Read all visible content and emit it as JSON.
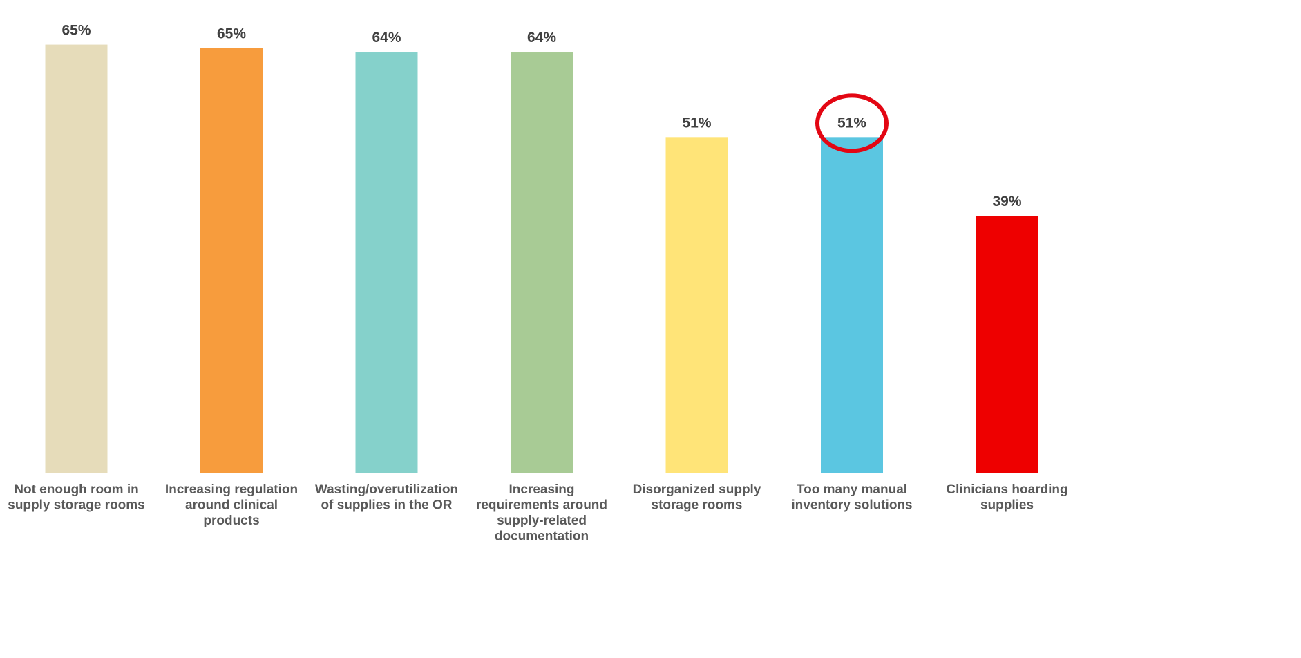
{
  "chart_data": {
    "type": "bar",
    "categories": [
      "Not enough room in supply storage rooms",
      "Increasing regulation around clinical products",
      "Wasting/overutilization of supplies in the OR",
      "Increasing requirements around supply-related documentation",
      "Disorganized supply storage rooms",
      "Too many manual inventory solutions",
      "Clinicians hoarding supplies"
    ],
    "category_lines": [
      [
        "Not enough room in",
        "supply storage rooms"
      ],
      [
        "Increasing regulation",
        "around clinical",
        "products"
      ],
      [
        "Wasting/overutilization",
        "of supplies in the OR"
      ],
      [
        "Increasing",
        "requirements around",
        "supply-related",
        "documentation"
      ],
      [
        "Disorganized supply",
        "storage rooms"
      ],
      [
        "Too many manual",
        "inventory solutions"
      ],
      [
        "Clinicians hoarding",
        "supplies"
      ]
    ],
    "values": [
      65.3,
      64.8,
      64.2,
      64.2,
      51.2,
      51.2,
      39.2
    ],
    "value_labels": [
      "65%",
      "65%",
      "64%",
      "64%",
      "51%",
      "51%",
      "39%"
    ],
    "colors": [
      "#E6DCBA",
      "#F79C3D",
      "#85D1CB",
      "#A8CB95",
      "#FFE478",
      "#5BC6E1",
      "#EE0000"
    ],
    "highlight_index": 5,
    "highlight_color": "#E30613",
    "ylim": [
      0,
      70
    ],
    "title": "",
    "xlabel": "",
    "ylabel": "",
    "grid": false,
    "legend": "none"
  }
}
